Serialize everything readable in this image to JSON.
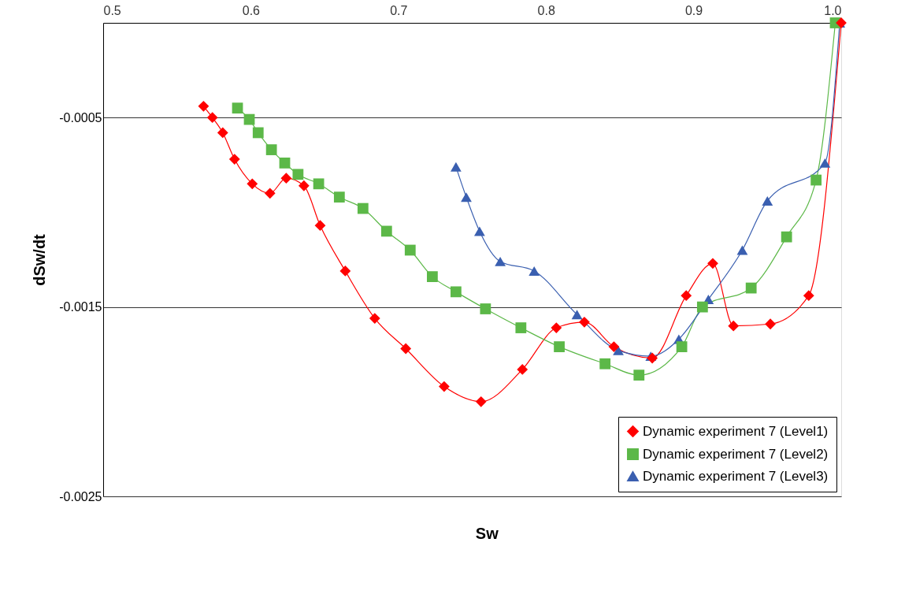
{
  "chart_data": {
    "type": "line",
    "xlabel": "Sw",
    "ylabel": "dSw/dt",
    "xlim": [
      0.5,
      1.0
    ],
    "xticks": [
      0.5,
      0.6,
      0.7,
      0.8,
      0.9,
      {
        "value": 1.0,
        "label": "1.0"
      }
    ],
    "ylim": [
      -0.0025,
      0
    ],
    "yticks": [
      -0.0005,
      -0.0015,
      -0.0025
    ],
    "grid": "y",
    "legend": "bottom right",
    "line_style": "solid",
    "series": [
      {
        "name": "Dynamic experiment 7 (Level1)",
        "color": "#ff0000",
        "marker": "diamond",
        "x": [
          0.568,
          0.574,
          0.581,
          0.589,
          0.601,
          0.613,
          0.624,
          0.636,
          0.647,
          0.664,
          0.684,
          0.705,
          0.731,
          0.756,
          0.784,
          0.807,
          0.826,
          0.846,
          0.872,
          0.895,
          0.913,
          0.927,
          0.952,
          0.978,
          1.0
        ],
        "values": [
          -0.00044,
          -0.0005,
          -0.00058,
          -0.00072,
          -0.00085,
          -0.0009,
          -0.00082,
          -0.00086,
          -0.00107,
          -0.00131,
          -0.00156,
          -0.00172,
          -0.00192,
          -0.002,
          -0.00183,
          -0.00161,
          -0.00158,
          -0.00171,
          -0.00177,
          -0.00144,
          -0.00127,
          -0.0016,
          -0.00159,
          -0.00144,
          0
        ]
      },
      {
        "name": "Dynamic experiment 7 (Level2)",
        "color": "#5cb848",
        "marker": "square",
        "x": [
          0.591,
          0.599,
          0.605,
          0.614,
          0.623,
          0.632,
          0.646,
          0.66,
          0.676,
          0.692,
          0.708,
          0.723,
          0.739,
          0.759,
          0.783,
          0.809,
          0.84,
          0.863,
          0.892,
          0.906,
          0.939,
          0.963,
          0.983,
          0.996
        ],
        "values": [
          -0.00045,
          -0.00051,
          -0.00058,
          -0.00067,
          -0.00074,
          -0.0008,
          -0.00085,
          -0.00092,
          -0.00098,
          -0.0011,
          -0.0012,
          -0.00134,
          -0.00142,
          -0.00151,
          -0.00161,
          -0.00171,
          -0.0018,
          -0.00186,
          -0.00171,
          -0.0015,
          -0.0014,
          -0.00113,
          -0.00083,
          0
        ]
      },
      {
        "name": "Dynamic experiment 7 (Level3)",
        "color": "#3a5fb0",
        "marker": "triangle",
        "x": [
          0.739,
          0.746,
          0.755,
          0.769,
          0.792,
          0.821,
          0.849,
          0.871,
          0.89,
          0.91,
          0.933,
          0.95,
          0.989,
          0.999
        ],
        "values": [
          -0.00076,
          -0.00092,
          -0.0011,
          -0.00126,
          -0.00131,
          -0.00154,
          -0.00173,
          -0.00176,
          -0.00167,
          -0.00146,
          -0.0012,
          -0.00094,
          -0.00074,
          0
        ]
      }
    ]
  }
}
